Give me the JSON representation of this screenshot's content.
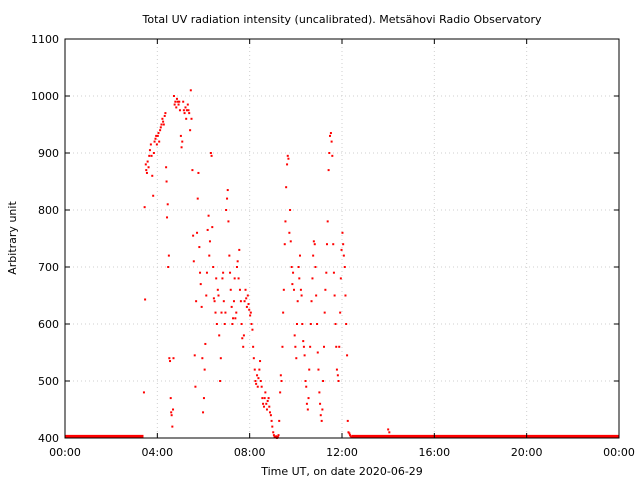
{
  "chart_data": {
    "type": "scatter",
    "title": "Total UV radiation intensity (uncalibrated). Metsähovi Radio Observatory",
    "xlabel": "Time UT, on date 2020-06-29",
    "ylabel": "Arbitrary unit",
    "xlim": [
      0,
      24
    ],
    "ylim": [
      400,
      1100
    ],
    "x_unit": "hours UT",
    "x_ticks": [
      0,
      4,
      8,
      12,
      16,
      20,
      24
    ],
    "x_tick_labels": [
      "00:00",
      "04:00",
      "08:00",
      "12:00",
      "16:00",
      "20:00",
      "00:00"
    ],
    "y_ticks": [
      400,
      500,
      600,
      700,
      800,
      900,
      1000,
      1100
    ],
    "y_tick_labels": [
      "400",
      "500",
      "600",
      "700",
      "800",
      "900",
      "1000",
      "1100"
    ],
    "grid": true,
    "legend": "none",
    "colors": {
      "series": "#ff0000",
      "grid": "#cfcfcf",
      "axis": "#000000"
    },
    "series": [
      {
        "points": [
          [
            3.42,
            480
          ],
          [
            3.45,
            805
          ],
          [
            3.47,
            643
          ],
          [
            3.5,
            880
          ],
          [
            3.52,
            870
          ],
          [
            3.55,
            865
          ],
          [
            3.58,
            885
          ],
          [
            3.62,
            875
          ],
          [
            3.65,
            895
          ],
          [
            3.68,
            905
          ],
          [
            3.72,
            915
          ],
          [
            3.75,
            895
          ],
          [
            3.78,
            860
          ],
          [
            3.82,
            825
          ],
          [
            3.85,
            900
          ],
          [
            3.88,
            920
          ],
          [
            3.92,
            925
          ],
          [
            3.95,
            930
          ],
          [
            3.98,
            915
          ],
          [
            4.02,
            930
          ],
          [
            4.05,
            935
          ],
          [
            4.08,
            920
          ],
          [
            4.12,
            940
          ],
          [
            4.15,
            945
          ],
          [
            4.18,
            950
          ],
          [
            4.22,
            960
          ],
          [
            4.25,
            955
          ],
          [
            4.28,
            950
          ],
          [
            4.32,
            965
          ],
          [
            4.35,
            970
          ],
          [
            4.38,
            875
          ],
          [
            4.4,
            850
          ],
          [
            4.42,
            787
          ],
          [
            4.45,
            810
          ],
          [
            4.47,
            700
          ],
          [
            4.5,
            720
          ],
          [
            4.52,
            540
          ],
          [
            4.55,
            535
          ],
          [
            4.58,
            470
          ],
          [
            4.6,
            445
          ],
          [
            4.62,
            440
          ],
          [
            4.65,
            420
          ],
          [
            4.68,
            450
          ],
          [
            4.7,
            540
          ],
          [
            4.72,
            1000
          ],
          [
            4.75,
            985
          ],
          [
            4.78,
            990
          ],
          [
            4.82,
            980
          ],
          [
            4.85,
            995
          ],
          [
            4.88,
            990
          ],
          [
            4.92,
            985
          ],
          [
            4.95,
            990
          ],
          [
            4.98,
            975
          ],
          [
            5.02,
            930
          ],
          [
            5.05,
            910
          ],
          [
            5.08,
            920
          ],
          [
            5.12,
            990
          ],
          [
            5.15,
            975
          ],
          [
            5.18,
            970
          ],
          [
            5.22,
            980
          ],
          [
            5.25,
            960
          ],
          [
            5.28,
            975
          ],
          [
            5.32,
            985
          ],
          [
            5.35,
            975
          ],
          [
            5.38,
            970
          ],
          [
            5.42,
            940
          ],
          [
            5.45,
            1010
          ],
          [
            5.48,
            960
          ],
          [
            5.52,
            870
          ],
          [
            5.55,
            755
          ],
          [
            5.58,
            710
          ],
          [
            5.62,
            545
          ],
          [
            5.65,
            490
          ],
          [
            5.68,
            640
          ],
          [
            5.72,
            760
          ],
          [
            5.75,
            820
          ],
          [
            5.78,
            865
          ],
          [
            5.82,
            735
          ],
          [
            5.85,
            690
          ],
          [
            5.88,
            670
          ],
          [
            5.92,
            630
          ],
          [
            5.95,
            540
          ],
          [
            5.98,
            445
          ],
          [
            6.02,
            470
          ],
          [
            6.05,
            520
          ],
          [
            6.08,
            565
          ],
          [
            6.12,
            650
          ],
          [
            6.15,
            690
          ],
          [
            6.18,
            765
          ],
          [
            6.22,
            790
          ],
          [
            6.25,
            720
          ],
          [
            6.28,
            745
          ],
          [
            6.32,
            900
          ],
          [
            6.35,
            895
          ],
          [
            6.38,
            770
          ],
          [
            6.42,
            700
          ],
          [
            6.45,
            645
          ],
          [
            6.48,
            640
          ],
          [
            6.52,
            620
          ],
          [
            6.55,
            680
          ],
          [
            6.58,
            600
          ],
          [
            6.62,
            660
          ],
          [
            6.65,
            650
          ],
          [
            6.68,
            580
          ],
          [
            6.72,
            500
          ],
          [
            6.75,
            540
          ],
          [
            6.78,
            620
          ],
          [
            6.82,
            680
          ],
          [
            6.85,
            690
          ],
          [
            6.88,
            640
          ],
          [
            6.92,
            600
          ],
          [
            6.95,
            620
          ],
          [
            6.98,
            800
          ],
          [
            7.02,
            820
          ],
          [
            7.05,
            835
          ],
          [
            7.08,
            780
          ],
          [
            7.12,
            720
          ],
          [
            7.15,
            690
          ],
          [
            7.18,
            660
          ],
          [
            7.22,
            630
          ],
          [
            7.25,
            600
          ],
          [
            7.28,
            610
          ],
          [
            7.32,
            640
          ],
          [
            7.35,
            680
          ],
          [
            7.38,
            610
          ],
          [
            7.42,
            620
          ],
          [
            7.45,
            700
          ],
          [
            7.48,
            710
          ],
          [
            7.52,
            680
          ],
          [
            7.55,
            730
          ],
          [
            7.58,
            660
          ],
          [
            7.62,
            640
          ],
          [
            7.65,
            600
          ],
          [
            7.68,
            575
          ],
          [
            7.72,
            560
          ],
          [
            7.75,
            580
          ],
          [
            7.78,
            640
          ],
          [
            7.82,
            660
          ],
          [
            7.85,
            645
          ],
          [
            7.88,
            630
          ],
          [
            7.92,
            650
          ],
          [
            7.95,
            635
          ],
          [
            7.98,
            625
          ],
          [
            8.02,
            615
          ],
          [
            8.05,
            620
          ],
          [
            8.08,
            600
          ],
          [
            8.12,
            590
          ],
          [
            8.15,
            560
          ],
          [
            8.18,
            540
          ],
          [
            8.22,
            520
          ],
          [
            8.25,
            500
          ],
          [
            8.28,
            495
          ],
          [
            8.32,
            510
          ],
          [
            8.35,
            490
          ],
          [
            8.38,
            505
          ],
          [
            8.42,
            520
          ],
          [
            8.45,
            535
          ],
          [
            8.48,
            500
          ],
          [
            8.52,
            490
          ],
          [
            8.55,
            470
          ],
          [
            8.58,
            460
          ],
          [
            8.62,
            455
          ],
          [
            8.65,
            470
          ],
          [
            8.68,
            480
          ],
          [
            8.72,
            460
          ],
          [
            8.75,
            450
          ],
          [
            8.78,
            465
          ],
          [
            8.82,
            470
          ],
          [
            8.85,
            455
          ],
          [
            8.88,
            445
          ],
          [
            8.92,
            440
          ],
          [
            8.95,
            430
          ],
          [
            8.98,
            420
          ],
          [
            9.02,
            410
          ],
          [
            9.05,
            405
          ],
          [
            9.08,
            402
          ],
          [
            9.12,
            401
          ],
          [
            9.15,
            403
          ],
          [
            9.18,
            400
          ],
          [
            9.22,
            402
          ],
          [
            9.25,
            405
          ],
          [
            9.28,
            430
          ],
          [
            9.32,
            480
          ],
          [
            9.35,
            510
          ],
          [
            9.38,
            500
          ],
          [
            9.42,
            560
          ],
          [
            9.45,
            620
          ],
          [
            9.48,
            660
          ],
          [
            9.52,
            740
          ],
          [
            9.55,
            780
          ],
          [
            9.58,
            840
          ],
          [
            9.62,
            880
          ],
          [
            9.65,
            895
          ],
          [
            9.68,
            890
          ],
          [
            9.72,
            760
          ],
          [
            9.75,
            800
          ],
          [
            9.78,
            745
          ],
          [
            9.82,
            700
          ],
          [
            9.85,
            670
          ],
          [
            9.88,
            690
          ],
          [
            9.92,
            660
          ],
          [
            9.95,
            580
          ],
          [
            9.98,
            560
          ],
          [
            10.02,
            540
          ],
          [
            10.05,
            600
          ],
          [
            10.08,
            640
          ],
          [
            10.12,
            700
          ],
          [
            10.15,
            680
          ],
          [
            10.18,
            720
          ],
          [
            10.22,
            660
          ],
          [
            10.25,
            650
          ],
          [
            10.28,
            600
          ],
          [
            10.32,
            570
          ],
          [
            10.35,
            560
          ],
          [
            10.38,
            545
          ],
          [
            10.42,
            500
          ],
          [
            10.45,
            490
          ],
          [
            10.48,
            460
          ],
          [
            10.52,
            450
          ],
          [
            10.55,
            470
          ],
          [
            10.58,
            520
          ],
          [
            10.62,
            560
          ],
          [
            10.65,
            600
          ],
          [
            10.68,
            640
          ],
          [
            10.72,
            680
          ],
          [
            10.75,
            720
          ],
          [
            10.78,
            745
          ],
          [
            10.82,
            740
          ],
          [
            10.85,
            700
          ],
          [
            10.88,
            650
          ],
          [
            10.92,
            600
          ],
          [
            10.95,
            550
          ],
          [
            10.98,
            520
          ],
          [
            11.02,
            480
          ],
          [
            11.05,
            460
          ],
          [
            11.08,
            440
          ],
          [
            11.12,
            430
          ],
          [
            11.15,
            450
          ],
          [
            11.18,
            500
          ],
          [
            11.22,
            560
          ],
          [
            11.25,
            620
          ],
          [
            11.28,
            660
          ],
          [
            11.32,
            690
          ],
          [
            11.35,
            740
          ],
          [
            11.38,
            780
          ],
          [
            11.42,
            870
          ],
          [
            11.45,
            900
          ],
          [
            11.48,
            930
          ],
          [
            11.52,
            935
          ],
          [
            11.55,
            920
          ],
          [
            11.58,
            895
          ],
          [
            11.62,
            740
          ],
          [
            11.65,
            690
          ],
          [
            11.68,
            650
          ],
          [
            11.72,
            600
          ],
          [
            11.75,
            560
          ],
          [
            11.78,
            520
          ],
          [
            11.82,
            510
          ],
          [
            11.85,
            500
          ],
          [
            11.88,
            560
          ],
          [
            11.92,
            620
          ],
          [
            11.95,
            680
          ],
          [
            11.98,
            730
          ],
          [
            12.02,
            760
          ],
          [
            12.05,
            740
          ],
          [
            12.08,
            720
          ],
          [
            12.12,
            700
          ],
          [
            12.15,
            650
          ],
          [
            12.18,
            600
          ],
          [
            12.22,
            545
          ],
          [
            12.25,
            430
          ],
          [
            12.28,
            410
          ],
          [
            12.32,
            408
          ],
          [
            12.35,
            405
          ],
          [
            12.38,
            403
          ],
          [
            12.42,
            401
          ],
          [
            14.0,
            415
          ],
          [
            14.05,
            410
          ]
        ],
        "baseline_segments": [
          {
            "y": 401,
            "x_from": 0,
            "x_to": 3.4
          },
          {
            "y": 401,
            "x_from": 12.42,
            "x_to": 24
          }
        ]
      }
    ]
  }
}
